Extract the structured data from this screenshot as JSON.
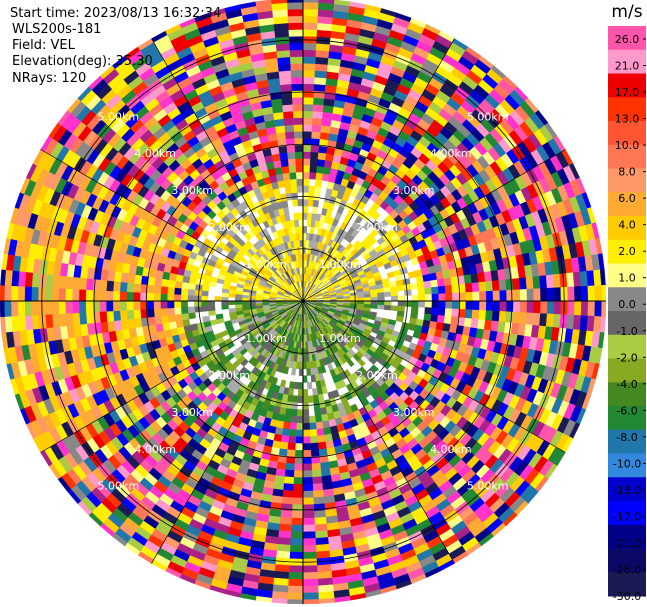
{
  "header": {
    "start_time": "Start time: 2023/08/13 16:32:34",
    "instrument": "WLS200s-181",
    "field": "Field: VEL",
    "elevation": "Elevation(deg): 35.30",
    "nrays": "NRays: 120"
  },
  "chart_data": {
    "type": "ppi",
    "field": "VEL",
    "n_rays": 120,
    "elevation_deg": 35.3,
    "range_rings": [
      {
        "value": 1.0,
        "label": "1.00km"
      },
      {
        "value": 2.0,
        "label": "2.00km"
      },
      {
        "value": 3.0,
        "label": "3.00km"
      },
      {
        "value": 4.0,
        "label": "4.00km"
      },
      {
        "value": 5.0,
        "label": "5.00km"
      }
    ],
    "max_range_km": 5.8,
    "colorbar": {
      "unit": "m/s",
      "labels": [
        "26.0",
        "21.0",
        "17.0",
        "13.0",
        "10.0",
        "8.0",
        "6.0",
        "4.0",
        "2.0",
        "1.0",
        "0.0",
        "-1.0",
        "-2.0",
        "-4.0",
        "-6.0",
        "-8.0",
        "-10.0",
        "-13.0",
        "-17.0",
        "-21.0",
        "-26.0",
        "-30.0"
      ],
      "colors": [
        "#ff55aa",
        "#ff99cc",
        "#ee0000",
        "#ff3300",
        "#ff5533",
        "#ff7755",
        "#ff9966",
        "#ffaa33",
        "#ffcc00",
        "#ffee00",
        "#ffff88",
        "#888888",
        "#666666",
        "#aacc44",
        "#88aa22",
        "#448822",
        "#228833",
        "#2277aa",
        "#3388dd",
        "#0000cc",
        "#0000ff",
        "#000088",
        "#0a0a66",
        "#1a1a55"
      ]
    },
    "near_field": {
      "radius_km": 2.3,
      "north_colors": [
        "#ffee00",
        "#ffcc00",
        "#ffff66",
        "#ffee00",
        "#888888",
        "#aaaaaa"
      ],
      "south_colors": [
        "#448822",
        "#228833",
        "#88aa22",
        "#aacc44",
        "#666666",
        "#aaaaaa"
      ]
    },
    "far_field_colors": [
      "#ff55aa",
      "#ff99cc",
      "#ee0000",
      "#ff3300",
      "#ff7755",
      "#ff9966",
      "#ffaa33",
      "#ffcc00",
      "#ffee00",
      "#ffff88",
      "#888888",
      "#aacc44",
      "#228833",
      "#2277aa",
      "#0000cc",
      "#0000ff",
      "#000088",
      "#1a1a55",
      "#aa2288",
      "#ff33cc"
    ],
    "west_colors": [
      "#ffcc00",
      "#ffaa33",
      "#ff9966",
      "#ffee00",
      "#ffaa33"
    ]
  }
}
